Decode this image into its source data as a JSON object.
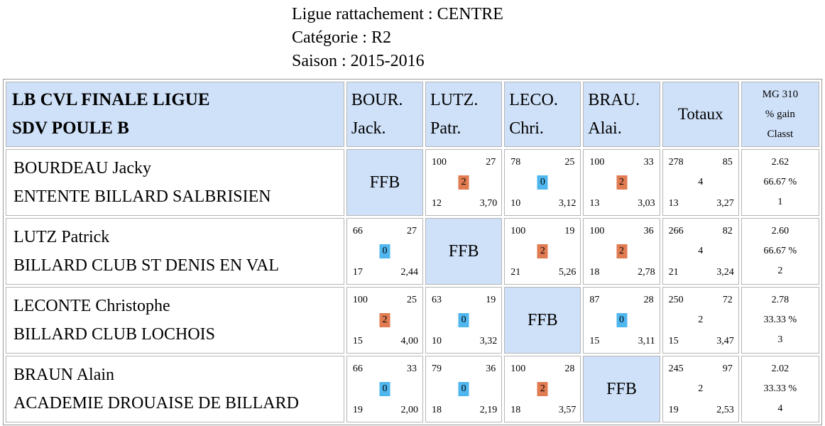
{
  "header": {
    "ligue": "Ligue rattachement : CENTRE",
    "categorie": "Catégorie : R2",
    "saison": "Saison : 2015-2016"
  },
  "table": {
    "title_line1": "LB CVL FINALE LIGUE",
    "title_line2": "SDV POULE B",
    "columns": [
      {
        "line1": "BOUR.",
        "line2": "Jack."
      },
      {
        "line1": "LUTZ.",
        "line2": "Patr."
      },
      {
        "line1": "LECO.",
        "line2": "Chri."
      },
      {
        "line1": "BRAU.",
        "line2": "Alai."
      }
    ],
    "totals_label": "Totaux",
    "mg_line1": "MG 310",
    "mg_line2": "% gain",
    "mg_line3": "Classt",
    "ffb_label": "FFB",
    "rows": [
      {
        "name": "BOURDEAU Jacky",
        "club": "ENTENTE BILLARD SALBRISIEN",
        "cells": [
          null,
          {
            "tl": "100",
            "tr": "27",
            "pts": "2",
            "bl": "12",
            "br": "3,70"
          },
          {
            "tl": "78",
            "tr": "25",
            "pts": "0",
            "bl": "10",
            "br": "3,12"
          },
          {
            "tl": "100",
            "tr": "33",
            "pts": "2",
            "bl": "13",
            "br": "3,03"
          }
        ],
        "totals": {
          "tl": "278",
          "tr": "85",
          "mid": "4",
          "bl": "13",
          "br": "3,27"
        },
        "mg": "2.62",
        "pct": "66.67 %",
        "rank": "1"
      },
      {
        "name": "LUTZ Patrick",
        "club": "BILLARD CLUB ST DENIS EN VAL",
        "cells": [
          {
            "tl": "66",
            "tr": "27",
            "pts": "0",
            "bl": "17",
            "br": "2,44"
          },
          null,
          {
            "tl": "100",
            "tr": "19",
            "pts": "2",
            "bl": "21",
            "br": "5,26"
          },
          {
            "tl": "100",
            "tr": "36",
            "pts": "2",
            "bl": "18",
            "br": "2,78"
          }
        ],
        "totals": {
          "tl": "266",
          "tr": "82",
          "mid": "4",
          "bl": "21",
          "br": "3,24"
        },
        "mg": "2.60",
        "pct": "66.67 %",
        "rank": "2"
      },
      {
        "name": "LECONTE Christophe",
        "club": "BILLARD CLUB LOCHOIS",
        "cells": [
          {
            "tl": "100",
            "tr": "25",
            "pts": "2",
            "bl": "15",
            "br": "4,00"
          },
          {
            "tl": "63",
            "tr": "19",
            "pts": "0",
            "bl": "10",
            "br": "3,32"
          },
          null,
          {
            "tl": "87",
            "tr": "28",
            "pts": "0",
            "bl": "15",
            "br": "3,11"
          }
        ],
        "totals": {
          "tl": "250",
          "tr": "72",
          "mid": "2",
          "bl": "15",
          "br": "3,47"
        },
        "mg": "2.78",
        "pct": "33.33 %",
        "rank": "3"
      },
      {
        "name": "BRAUN Alain",
        "club": "ACADEMIE DROUAISE DE BILLARD",
        "cells": [
          {
            "tl": "66",
            "tr": "33",
            "pts": "0",
            "bl": "19",
            "br": "2,00"
          },
          {
            "tl": "79",
            "tr": "36",
            "pts": "0",
            "bl": "18",
            "br": "2,19"
          },
          {
            "tl": "100",
            "tr": "28",
            "pts": "2",
            "bl": "18",
            "br": "3,57"
          },
          null
        ],
        "totals": {
          "tl": "245",
          "tr": "97",
          "mid": "2",
          "bl": "19",
          "br": "2,53"
        },
        "mg": "2.02",
        "pct": "33.33 %",
        "rank": "4"
      }
    ]
  }
}
